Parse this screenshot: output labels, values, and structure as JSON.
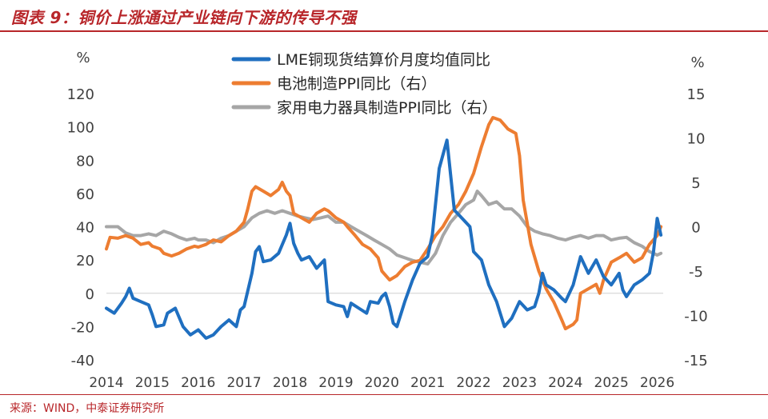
{
  "header": {
    "title": "图表 9：铜价上涨通过产业链向下游的传导不强"
  },
  "footer": {
    "source": "来源：WIND，中泰证券研究所"
  },
  "chart_data": {
    "type": "line",
    "left_axis": {
      "unit": "%",
      "ylim": [
        -40,
        120
      ],
      "ticks": [
        120,
        100,
        80,
        60,
        40,
        20,
        0,
        -20,
        -40
      ]
    },
    "right_axis": {
      "unit": "%",
      "ylim": [
        -15,
        15
      ],
      "ticks": [
        15,
        10,
        5,
        0,
        -5,
        -10,
        -15
      ]
    },
    "x_axis": {
      "xlim": [
        2014,
        2026.2
      ],
      "tick_labels": [
        "2014",
        "2015",
        "2016",
        "2017",
        "2018",
        "2019",
        "2020",
        "2021",
        "2022",
        "2023",
        "2024",
        "2025",
        "2026"
      ]
    },
    "grid": false,
    "legend_position": "top-center",
    "series": [
      {
        "name": "LME铜现货结算价月度均值同比",
        "axis": "left",
        "color": "#1f6fc0",
        "points": [
          [
            2014.0,
            -9
          ],
          [
            2014.17,
            -12
          ],
          [
            2014.33,
            -6
          ],
          [
            2014.42,
            -2
          ],
          [
            2014.5,
            3
          ],
          [
            2014.58,
            -3
          ],
          [
            2014.75,
            -5
          ],
          [
            2014.92,
            -7
          ],
          [
            2015.0,
            -13
          ],
          [
            2015.08,
            -20
          ],
          [
            2015.25,
            -19
          ],
          [
            2015.33,
            -12
          ],
          [
            2015.5,
            -9
          ],
          [
            2015.67,
            -20
          ],
          [
            2015.83,
            -25
          ],
          [
            2016.0,
            -22
          ],
          [
            2016.17,
            -27
          ],
          [
            2016.33,
            -25
          ],
          [
            2016.5,
            -20
          ],
          [
            2016.67,
            -16
          ],
          [
            2016.83,
            -20
          ],
          [
            2016.92,
            -10
          ],
          [
            2017.0,
            -8
          ],
          [
            2017.17,
            12
          ],
          [
            2017.25,
            25
          ],
          [
            2017.33,
            28
          ],
          [
            2017.42,
            19
          ],
          [
            2017.58,
            20
          ],
          [
            2017.75,
            24
          ],
          [
            2017.92,
            35
          ],
          [
            2018.0,
            42
          ],
          [
            2018.08,
            30
          ],
          [
            2018.17,
            24
          ],
          [
            2018.25,
            20
          ],
          [
            2018.42,
            22
          ],
          [
            2018.58,
            15
          ],
          [
            2018.75,
            20
          ],
          [
            2018.83,
            -5
          ],
          [
            2019.0,
            -7
          ],
          [
            2019.17,
            -8
          ],
          [
            2019.25,
            -14
          ],
          [
            2019.33,
            -6
          ],
          [
            2019.5,
            -9
          ],
          [
            2019.67,
            -12
          ],
          [
            2019.75,
            -5
          ],
          [
            2019.92,
            -6
          ],
          [
            2020.0,
            -2
          ],
          [
            2020.08,
            0
          ],
          [
            2020.17,
            -8
          ],
          [
            2020.25,
            -18
          ],
          [
            2020.33,
            -20
          ],
          [
            2020.5,
            -5
          ],
          [
            2020.67,
            8
          ],
          [
            2020.83,
            18
          ],
          [
            2021.0,
            22
          ],
          [
            2021.1,
            35
          ],
          [
            2021.25,
            75
          ],
          [
            2021.42,
            92
          ],
          [
            2021.58,
            50
          ],
          [
            2021.75,
            45
          ],
          [
            2021.92,
            40
          ],
          [
            2022.0,
            25
          ],
          [
            2022.17,
            20
          ],
          [
            2022.33,
            5
          ],
          [
            2022.5,
            -5
          ],
          [
            2022.67,
            -20
          ],
          [
            2022.83,
            -15
          ],
          [
            2023.0,
            -5
          ],
          [
            2023.17,
            -10
          ],
          [
            2023.33,
            -8
          ],
          [
            2023.42,
            0
          ],
          [
            2023.5,
            12
          ],
          [
            2023.58,
            5
          ],
          [
            2023.75,
            2
          ],
          [
            2023.92,
            -3
          ],
          [
            2024.0,
            -5
          ],
          [
            2024.17,
            5
          ],
          [
            2024.33,
            22
          ],
          [
            2024.5,
            12
          ],
          [
            2024.67,
            20
          ],
          [
            2024.83,
            10
          ],
          [
            2025.0,
            5
          ],
          [
            2025.17,
            12
          ],
          [
            2025.25,
            2
          ],
          [
            2025.33,
            -2
          ],
          [
            2025.5,
            5
          ],
          [
            2025.67,
            8
          ],
          [
            2025.83,
            12
          ],
          [
            2025.92,
            25
          ],
          [
            2026.0,
            45
          ],
          [
            2026.08,
            35
          ]
        ]
      },
      {
        "name": "电池制造PPI同比（右）",
        "axis": "right",
        "color": "#ed7d31",
        "points": [
          [
            2014.0,
            -2.5
          ],
          [
            2014.08,
            -1.2
          ],
          [
            2014.25,
            -1.3
          ],
          [
            2014.42,
            -1.0
          ],
          [
            2014.58,
            -1.3
          ],
          [
            2014.75,
            -2.0
          ],
          [
            2014.92,
            -1.8
          ],
          [
            2015.0,
            -2.2
          ],
          [
            2015.17,
            -2.5
          ],
          [
            2015.25,
            -3.0
          ],
          [
            2015.42,
            -3.3
          ],
          [
            2015.58,
            -3.0
          ],
          [
            2015.75,
            -2.5
          ],
          [
            2015.92,
            -2.2
          ],
          [
            2016.0,
            -2.3
          ],
          [
            2016.17,
            -2.0
          ],
          [
            2016.33,
            -1.5
          ],
          [
            2016.5,
            -1.7
          ],
          [
            2016.67,
            -1.0
          ],
          [
            2016.83,
            -0.5
          ],
          [
            2017.0,
            0.5
          ],
          [
            2017.08,
            2.0
          ],
          [
            2017.17,
            4.0
          ],
          [
            2017.25,
            4.5
          ],
          [
            2017.42,
            4.0
          ],
          [
            2017.58,
            3.5
          ],
          [
            2017.75,
            4.2
          ],
          [
            2017.83,
            5.0
          ],
          [
            2017.92,
            4.0
          ],
          [
            2018.0,
            3.5
          ],
          [
            2018.08,
            1.5
          ],
          [
            2018.25,
            1.0
          ],
          [
            2018.42,
            0.5
          ],
          [
            2018.58,
            1.5
          ],
          [
            2018.75,
            2.0
          ],
          [
            2018.83,
            1.8
          ],
          [
            2019.0,
            1.0
          ],
          [
            2019.17,
            0.5
          ],
          [
            2019.25,
            0.0
          ],
          [
            2019.42,
            -1.0
          ],
          [
            2019.58,
            -2.0
          ],
          [
            2019.75,
            -2.5
          ],
          [
            2019.92,
            -3.5
          ],
          [
            2020.0,
            -5.0
          ],
          [
            2020.17,
            -6.0
          ],
          [
            2020.33,
            -5.5
          ],
          [
            2020.5,
            -4.5
          ],
          [
            2020.67,
            -4.0
          ],
          [
            2020.83,
            -3.8
          ],
          [
            2021.0,
            -2.5
          ],
          [
            2021.17,
            -1.0
          ],
          [
            2021.33,
            0.0
          ],
          [
            2021.5,
            1.5
          ],
          [
            2021.67,
            2.5
          ],
          [
            2021.83,
            4.0
          ],
          [
            2022.0,
            6.0
          ],
          [
            2022.17,
            9.0
          ],
          [
            2022.33,
            11.5
          ],
          [
            2022.42,
            12.3
          ],
          [
            2022.58,
            12.0
          ],
          [
            2022.75,
            11.0
          ],
          [
            2022.92,
            10.5
          ],
          [
            2023.0,
            8.0
          ],
          [
            2023.08,
            3.0
          ],
          [
            2023.25,
            -2.0
          ],
          [
            2023.42,
            -5.0
          ],
          [
            2023.58,
            -7.0
          ],
          [
            2023.75,
            -8.5
          ],
          [
            2023.92,
            -10.5
          ],
          [
            2024.0,
            -11.5
          ],
          [
            2024.17,
            -11.0
          ],
          [
            2024.25,
            -10.5
          ],
          [
            2024.33,
            -7.5
          ],
          [
            2024.5,
            -7.0
          ],
          [
            2024.67,
            -6.5
          ],
          [
            2024.75,
            -7.5
          ],
          [
            2024.83,
            -6.0
          ],
          [
            2025.0,
            -4.0
          ],
          [
            2025.17,
            -3.5
          ],
          [
            2025.33,
            -3.0
          ],
          [
            2025.5,
            -4.0
          ],
          [
            2025.67,
            -3.5
          ],
          [
            2025.83,
            -2.0
          ],
          [
            2026.0,
            -1.0
          ],
          [
            2026.08,
            0.0
          ]
        ]
      },
      {
        "name": "家用电力器具制造PPI同比（右）",
        "axis": "right",
        "color": "#a6a6a6",
        "points": [
          [
            2014.0,
            0.0
          ],
          [
            2014.25,
            0.0
          ],
          [
            2014.42,
            -0.7
          ],
          [
            2014.58,
            -1.0
          ],
          [
            2014.75,
            -1.0
          ],
          [
            2014.92,
            -0.8
          ],
          [
            2015.08,
            -1.0
          ],
          [
            2015.25,
            -0.5
          ],
          [
            2015.42,
            -0.8
          ],
          [
            2015.58,
            -1.2
          ],
          [
            2015.75,
            -1.5
          ],
          [
            2015.92,
            -1.3
          ],
          [
            2016.0,
            -1.5
          ],
          [
            2016.17,
            -1.5
          ],
          [
            2016.33,
            -1.8
          ],
          [
            2016.5,
            -1.3
          ],
          [
            2016.67,
            -1.0
          ],
          [
            2016.83,
            -0.5
          ],
          [
            2017.0,
            0.0
          ],
          [
            2017.17,
            1.0
          ],
          [
            2017.33,
            1.5
          ],
          [
            2017.5,
            1.8
          ],
          [
            2017.67,
            1.5
          ],
          [
            2017.83,
            1.8
          ],
          [
            2018.0,
            1.5
          ],
          [
            2018.17,
            1.2
          ],
          [
            2018.33,
            1.0
          ],
          [
            2018.5,
            0.8
          ],
          [
            2018.67,
            1.0
          ],
          [
            2018.83,
            1.2
          ],
          [
            2019.0,
            0.5
          ],
          [
            2019.17,
            0.5
          ],
          [
            2019.33,
            0.0
          ],
          [
            2019.5,
            -0.5
          ],
          [
            2019.67,
            -1.0
          ],
          [
            2019.83,
            -1.5
          ],
          [
            2020.0,
            -2.0
          ],
          [
            2020.17,
            -2.5
          ],
          [
            2020.33,
            -3.2
          ],
          [
            2020.5,
            -3.5
          ],
          [
            2020.67,
            -3.8
          ],
          [
            2020.83,
            -4.0
          ],
          [
            2021.0,
            -4.2
          ],
          [
            2021.17,
            -3.0
          ],
          [
            2021.33,
            -1.0
          ],
          [
            2021.5,
            0.5
          ],
          [
            2021.67,
            1.5
          ],
          [
            2021.83,
            2.5
          ],
          [
            2022.0,
            3.0
          ],
          [
            2022.08,
            4.0
          ],
          [
            2022.17,
            3.5
          ],
          [
            2022.33,
            2.5
          ],
          [
            2022.5,
            2.8
          ],
          [
            2022.67,
            2.0
          ],
          [
            2022.83,
            2.0
          ],
          [
            2023.0,
            1.2
          ],
          [
            2023.17,
            0.0
          ],
          [
            2023.33,
            -0.5
          ],
          [
            2023.5,
            -0.8
          ],
          [
            2023.67,
            -1.0
          ],
          [
            2023.83,
            -1.3
          ],
          [
            2024.0,
            -1.5
          ],
          [
            2024.17,
            -1.2
          ],
          [
            2024.33,
            -1.0
          ],
          [
            2024.5,
            -1.3
          ],
          [
            2024.67,
            -1.0
          ],
          [
            2024.83,
            -1.0
          ],
          [
            2025.0,
            -1.5
          ],
          [
            2025.17,
            -1.3
          ],
          [
            2025.33,
            -1.2
          ],
          [
            2025.5,
            -1.8
          ],
          [
            2025.67,
            -2.2
          ],
          [
            2025.83,
            -2.8
          ],
          [
            2026.0,
            -3.2
          ],
          [
            2026.08,
            -3.0
          ]
        ]
      }
    ]
  }
}
